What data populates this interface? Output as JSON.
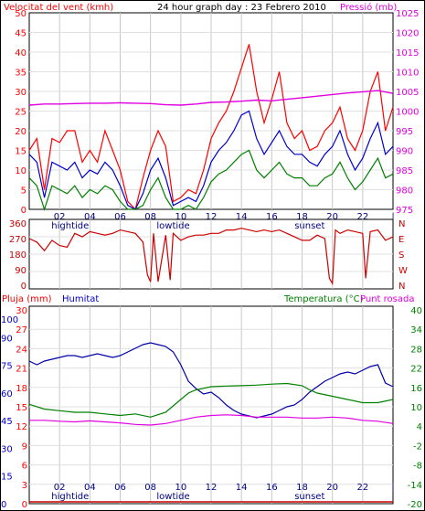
{
  "header": {
    "wind_label": "Velocitat del vent (kmh)",
    "title": "24 hour graph day : 23 Febrero 2010",
    "pressure_label": "Pressió (mb)"
  },
  "bottom_header": {
    "rain_label": "Pluja (mm)",
    "humidity_label": "Humitat",
    "temperature_label": "Temperatura (°C)",
    "dewpoint_label": "Punt rosada"
  },
  "x_axis": {
    "hour_labels": [
      "02",
      "04",
      "06",
      "08",
      "10",
      "12",
      "14",
      "16",
      "18",
      "20",
      "22",
      "|"
    ],
    "markers": [
      {
        "label": "hightide",
        "at_hour": 2.7
      },
      {
        "label": "lowtide",
        "at_hour": 9.5
      },
      {
        "label": "sunset",
        "at_hour": 18.5
      }
    ]
  },
  "colors": {
    "wind_gust": "#ff0000",
    "wind_avg": "#0000cc",
    "wind_low": "#008000",
    "pressure": "#e000e0",
    "direction": "#cc0000",
    "humidity": "#0000aa",
    "temperature": "#008000",
    "dewpoint": "#e000e0",
    "rain": "#cc0000"
  },
  "chart_data": [
    {
      "type": "line",
      "x_range": [
        0,
        24
      ],
      "left_axis": {
        "ticks": [
          "0",
          "5",
          "10",
          "15",
          "20",
          "25",
          "30",
          "35",
          "40",
          "45",
          "50"
        ],
        "range": [
          0,
          50
        ]
      },
      "right_axis": {
        "ticks": [
          "975",
          "980",
          "985",
          "990",
          "995",
          "1000",
          "1005",
          "1010",
          "1015",
          "1020",
          "1025"
        ],
        "range": [
          975,
          1025
        ]
      },
      "series": [
        {
          "key": "gust",
          "axis": "left",
          "x": [
            0,
            0.5,
            1,
            1.5,
            2,
            2.5,
            3,
            3.5,
            4,
            4.5,
            5,
            5.5,
            6,
            6.5,
            7,
            7.5,
            8,
            8.5,
            9,
            9.5,
            10,
            10.5,
            11,
            11.5,
            12,
            12.5,
            13,
            13.5,
            14,
            14.5,
            15,
            15.5,
            16,
            16.5,
            17,
            17.5,
            18,
            18.5,
            19,
            19.5,
            20,
            20.5,
            21,
            21.5,
            22,
            22.5,
            23,
            23.5,
            24
          ],
          "values": [
            15,
            18,
            5,
            18,
            17,
            20,
            20,
            12,
            15,
            12,
            20,
            15,
            10,
            2,
            0,
            8,
            15,
            20,
            16,
            2,
            3,
            5,
            4,
            10,
            18,
            22,
            25,
            30,
            36,
            42,
            30,
            22,
            28,
            35,
            22,
            18,
            20,
            15,
            16,
            20,
            22,
            26,
            18,
            15,
            20,
            30,
            35,
            20,
            26
          ]
        },
        {
          "key": "average",
          "axis": "left",
          "x": [
            0,
            0.5,
            1,
            1.5,
            2,
            2.5,
            3,
            3.5,
            4,
            4.5,
            5,
            5.5,
            6,
            6.5,
            7,
            7.5,
            8,
            8.5,
            9,
            9.5,
            10,
            10.5,
            11,
            11.5,
            12,
            12.5,
            13,
            13.5,
            14,
            14.5,
            15,
            15.5,
            16,
            16.5,
            17,
            17.5,
            18,
            18.5,
            19,
            19.5,
            20,
            20.5,
            21,
            21.5,
            22,
            22.5,
            23,
            23.5,
            24
          ],
          "values": [
            14,
            12,
            3,
            12,
            11,
            10,
            12,
            8,
            10,
            9,
            12,
            10,
            6,
            1,
            0,
            4,
            10,
            13,
            8,
            1,
            2,
            3,
            2,
            6,
            12,
            15,
            17,
            20,
            24,
            25,
            18,
            14,
            17,
            20,
            16,
            14,
            14,
            12,
            11,
            14,
            16,
            20,
            14,
            10,
            13,
            18,
            22,
            14,
            16
          ]
        },
        {
          "key": "minimum",
          "axis": "left",
          "x": [
            0,
            0.5,
            1,
            1.5,
            2,
            2.5,
            3,
            3.5,
            4,
            4.5,
            5,
            5.5,
            6,
            6.5,
            7,
            7.5,
            8,
            8.5,
            9,
            9.5,
            10,
            10.5,
            11,
            11.5,
            12,
            12.5,
            13,
            13.5,
            14,
            14.5,
            15,
            15.5,
            16,
            16.5,
            17,
            17.5,
            18,
            18.5,
            19,
            19.5,
            20,
            20.5,
            21,
            21.5,
            22,
            22.5,
            23,
            23.5,
            24
          ],
          "values": [
            8,
            6,
            0,
            6,
            5,
            4,
            6,
            3,
            5,
            4,
            6,
            5,
            2,
            0,
            0,
            1,
            5,
            8,
            3,
            0,
            0,
            1,
            0,
            3,
            7,
            9,
            10,
            12,
            14,
            15,
            10,
            8,
            10,
            12,
            9,
            8,
            8,
            6,
            6,
            8,
            9,
            12,
            8,
            5,
            7,
            10,
            13,
            8,
            9
          ]
        },
        {
          "key": "pressure",
          "axis": "right",
          "x": [
            0,
            1,
            2,
            3,
            4,
            5,
            6,
            7,
            8,
            9,
            10,
            11,
            12,
            13,
            14,
            15,
            16,
            17,
            18,
            19,
            20,
            21,
            22,
            23,
            24
          ],
          "values": [
            1001.5,
            1001.8,
            1001.8,
            1001.9,
            1002.0,
            1002.0,
            1002.1,
            1002.0,
            1001.9,
            1001.6,
            1001.5,
            1001.8,
            1002.2,
            1002.3,
            1002.5,
            1002.8,
            1002.6,
            1003.0,
            1003.4,
            1003.8,
            1004.2,
            1004.6,
            1004.9,
            1005.2,
            1004.5
          ]
        }
      ]
    },
    {
      "type": "line",
      "x_range": [
        0,
        24
      ],
      "left_axis": {
        "ticks": [
          "0",
          "90",
          "180",
          "270",
          "360"
        ],
        "range": [
          0,
          360
        ]
      },
      "right_axis": {
        "ticks": [
          "N",
          "E",
          "S",
          "W",
          "N"
        ]
      },
      "series": [
        {
          "key": "direction",
          "x": [
            0,
            0.5,
            1,
            1.5,
            2,
            2.5,
            3,
            3.5,
            4,
            4.5,
            5,
            5.5,
            6,
            6.5,
            7,
            7.5,
            7.8,
            8,
            8.2,
            8.5,
            9,
            9.3,
            9.5,
            10,
            10.5,
            11,
            11.5,
            12,
            12.5,
            13,
            13.5,
            14,
            14.5,
            15,
            15.5,
            16,
            16.5,
            17,
            17.5,
            18,
            18.5,
            19,
            19.5,
            19.8,
            20,
            20.2,
            20.5,
            21,
            21.5,
            22,
            22.2,
            22.5,
            23,
            23.5,
            24
          ],
          "values": [
            270,
            250,
            200,
            260,
            230,
            220,
            300,
            280,
            310,
            300,
            290,
            300,
            320,
            310,
            300,
            250,
            60,
            20,
            300,
            20,
            290,
            30,
            300,
            260,
            280,
            290,
            290,
            300,
            300,
            320,
            320,
            330,
            320,
            310,
            320,
            310,
            320,
            300,
            280,
            260,
            260,
            290,
            270,
            40,
            10,
            320,
            300,
            320,
            310,
            300,
            40,
            310,
            320,
            260,
            280
          ]
        }
      ]
    },
    {
      "type": "line",
      "x_range": [
        0,
        24
      ],
      "left_axis_humidity": {
        "ticks": [
          "0",
          "15",
          "30",
          "45",
          "60",
          "75",
          "90",
          "100"
        ],
        "range": [
          0,
          105
        ]
      },
      "left_axis_rain": {
        "ticks": [
          "0",
          "3",
          "6",
          "9",
          "12",
          "15",
          "18",
          "21",
          "24",
          "27",
          "30"
        ],
        "range": [
          0,
          30
        ]
      },
      "right_axis": {
        "ticks": [
          "-20",
          "-14",
          "-8",
          "-2",
          "4",
          "10",
          "16",
          "22",
          "28",
          "34",
          "40"
        ],
        "range": [
          -20,
          40
        ]
      },
      "series": [
        {
          "key": "humidity",
          "axis": "humidity",
          "x": [
            0,
            0.5,
            1,
            1.5,
            2,
            2.5,
            3,
            3.5,
            4,
            4.5,
            5,
            5.5,
            6,
            6.5,
            7,
            7.5,
            8,
            8.5,
            9,
            9.5,
            10,
            10.5,
            11,
            11.5,
            12,
            12.5,
            13,
            13.5,
            14,
            14.5,
            15,
            15.5,
            16,
            16.5,
            17,
            17.5,
            18,
            18.5,
            19,
            19.5,
            20,
            20.5,
            21,
            21.5,
            22,
            22.5,
            23,
            23.5,
            24
          ],
          "values": [
            77,
            75,
            77,
            78,
            79,
            80,
            80,
            79,
            80,
            81,
            80,
            79,
            80,
            82,
            84,
            86,
            87,
            86,
            85,
            82,
            75,
            66,
            62,
            59,
            60,
            57,
            53,
            50,
            48,
            47,
            46,
            47,
            48,
            50,
            52,
            53,
            56,
            60,
            63,
            66,
            68,
            70,
            71,
            70,
            72,
            74,
            75,
            65,
            63
          ]
        },
        {
          "key": "temperature",
          "axis": "temperature",
          "x": [
            0,
            1,
            2,
            3,
            4,
            5,
            6,
            7,
            8,
            9,
            9.5,
            10,
            10.5,
            11,
            11.5,
            12,
            13,
            14,
            15,
            16,
            17,
            18,
            18.5,
            19,
            20,
            21,
            22,
            23,
            24
          ],
          "values": [
            10.5,
            9,
            8.5,
            8,
            8,
            7.5,
            7,
            7.5,
            6.5,
            8,
            10,
            12,
            14,
            15,
            15.5,
            16,
            16.2,
            16.3,
            16.5,
            16.8,
            17,
            16.3,
            15,
            14,
            13,
            12,
            11,
            11,
            12
          ]
        },
        {
          "key": "dewpoint",
          "axis": "temperature",
          "x": [
            0,
            1,
            2,
            3,
            4,
            5,
            6,
            7,
            8,
            9,
            10,
            11,
            12,
            13,
            14,
            15,
            16,
            17,
            18,
            19,
            20,
            21,
            22,
            23,
            24
          ],
          "values": [
            5.5,
            5.5,
            5.2,
            5,
            5.3,
            5,
            4.7,
            4.2,
            4,
            4.5,
            5.5,
            6.5,
            7,
            7.2,
            7,
            6.5,
            6.5,
            6.5,
            6.2,
            6.2,
            6.5,
            6.2,
            5.5,
            5.2,
            4.5
          ]
        },
        {
          "key": "rain",
          "axis": "rain",
          "x": [
            0,
            24
          ],
          "values": [
            0,
            0
          ]
        }
      ]
    }
  ]
}
